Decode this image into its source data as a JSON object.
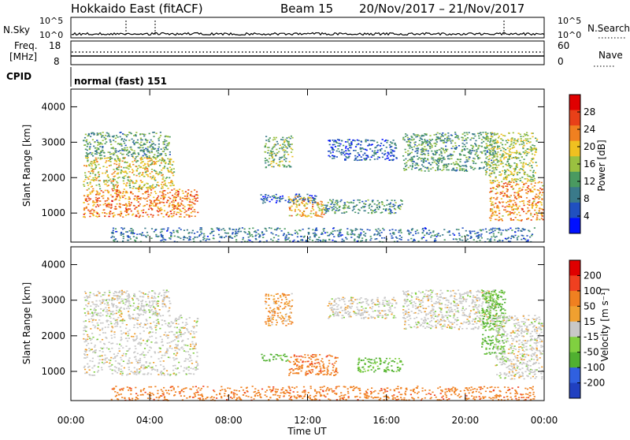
{
  "header": {
    "station": "Hokkaido East (fitACF)",
    "beam": "Beam 15",
    "date_range": "20/Nov/2017 – 21/Nov/2017"
  },
  "summary_panels": {
    "nsky_label": "N.Sky",
    "nsky_ticks": [
      "10^5",
      "10^0"
    ],
    "nsearch_label": "N.Search",
    "nsearch_ticks": [
      "10^5",
      "10^0"
    ],
    "freq_label_1": "Freq.",
    "freq_label_2": "[MHz]",
    "freq_ticks": [
      "18",
      "8"
    ],
    "nave_label": "Nave",
    "nave_ticks": [
      "60",
      "0"
    ],
    "cpid_label": "CPID",
    "cpid_value": "normal (fast) 151"
  },
  "colors": {
    "power_scale": [
      "#0010ff",
      "#2050c0",
      "#3a7a8a",
      "#4a9a60",
      "#9ac040",
      "#f0c020",
      "#f08020",
      "#e84018",
      "#e00000"
    ],
    "velocity_scale": [
      "#2040c0",
      "#3060e0",
      "#50b030",
      "#80d040",
      "#c8c8c8",
      "#f0a030",
      "#f08020",
      "#f04020",
      "#e00000"
    ]
  },
  "chart_data": [
    {
      "type": "heatmap",
      "title": "",
      "xlabel": "",
      "ylabel": "Slant Range [km]",
      "x_ticks": [
        "00:00",
        "04:00",
        "08:00",
        "12:00",
        "16:00",
        "20:00",
        "00:00"
      ],
      "y_ticks": [
        "1000",
        "2000",
        "3000",
        "4000"
      ],
      "xlim_hours": [
        0,
        24
      ],
      "ylim": [
        180,
        4500
      ],
      "colorbar_label": "Power [dB]",
      "colorbar_ticks": [
        "28",
        "24",
        "20",
        "16",
        "12",
        "8",
        "4"
      ],
      "colorbar_range": [
        0,
        30
      ],
      "regions": [
        {
          "t0": 0.6,
          "t1": 6.4,
          "r0": 900,
          "r1": 1700,
          "v": 22
        },
        {
          "t0": 0.6,
          "t1": 5.2,
          "r0": 1700,
          "r1": 2600,
          "v": 17
        },
        {
          "t0": 0.6,
          "t1": 5.0,
          "r0": 2600,
          "r1": 3300,
          "v": 11
        },
        {
          "t0": 9.8,
          "t1": 11.2,
          "r0": 2300,
          "r1": 3200,
          "v": 13
        },
        {
          "t0": 11.0,
          "t1": 12.8,
          "r0": 900,
          "r1": 1500,
          "v": 19
        },
        {
          "t0": 12.8,
          "t1": 16.8,
          "r0": 1000,
          "r1": 1400,
          "v": 10
        },
        {
          "t0": 9.6,
          "t1": 12.4,
          "r0": 1300,
          "r1": 1550,
          "v": 6
        },
        {
          "t0": 13.0,
          "t1": 16.5,
          "r0": 2500,
          "r1": 3100,
          "v": 6
        },
        {
          "t0": 16.8,
          "t1": 21.5,
          "r0": 2200,
          "r1": 3300,
          "v": 11
        },
        {
          "t0": 21.2,
          "t1": 23.9,
          "r0": 800,
          "r1": 1900,
          "v": 21
        },
        {
          "t0": 21.0,
          "t1": 23.6,
          "r0": 1900,
          "r1": 3300,
          "v": 15
        },
        {
          "t0": 2.0,
          "t1": 23.5,
          "r0": 200,
          "r1": 600,
          "v": 8
        }
      ]
    },
    {
      "type": "heatmap",
      "title": "",
      "xlabel": "Time UT",
      "ylabel": "Slant Range [km]",
      "x_ticks": [
        "00:00",
        "04:00",
        "08:00",
        "12:00",
        "16:00",
        "20:00",
        "00:00"
      ],
      "y_ticks": [
        "1000",
        "2000",
        "3000",
        "4000"
      ],
      "xlim_hours": [
        0,
        24
      ],
      "ylim": [
        180,
        4500
      ],
      "colorbar_label": "Velocity [m s⁻¹]",
      "colorbar_ticks": [
        "200",
        "100",
        "50",
        "15",
        "-15",
        "-50",
        "-100",
        "-200"
      ],
      "colorbar_range": [
        -250,
        250
      ],
      "regions": [
        {
          "t0": 0.6,
          "t1": 6.4,
          "r0": 900,
          "r1": 2600,
          "v": 0
        },
        {
          "t0": 0.6,
          "t1": 5.0,
          "r0": 2600,
          "r1": 3300,
          "v": 0
        },
        {
          "t0": 9.8,
          "t1": 11.2,
          "r0": 2300,
          "r1": 3200,
          "v": -30
        },
        {
          "t0": 11.0,
          "t1": 13.5,
          "r0": 900,
          "r1": 1500,
          "v": -60
        },
        {
          "t0": 14.5,
          "t1": 16.8,
          "r0": 1000,
          "r1": 1400,
          "v": 40
        },
        {
          "t0": 9.6,
          "t1": 11.0,
          "r0": 1300,
          "r1": 1500,
          "v": 45
        },
        {
          "t0": 13.0,
          "t1": 16.5,
          "r0": 2500,
          "r1": 3100,
          "v": 0
        },
        {
          "t0": 16.8,
          "t1": 21.5,
          "r0": 2200,
          "r1": 3300,
          "v": 0
        },
        {
          "t0": 20.8,
          "t1": 22.0,
          "r0": 1500,
          "r1": 3300,
          "v": 40
        },
        {
          "t0": 21.5,
          "t1": 23.9,
          "r0": 800,
          "r1": 2600,
          "v": 0
        },
        {
          "t0": 2.0,
          "t1": 23.5,
          "r0": 200,
          "r1": 600,
          "v": -60
        }
      ]
    }
  ]
}
